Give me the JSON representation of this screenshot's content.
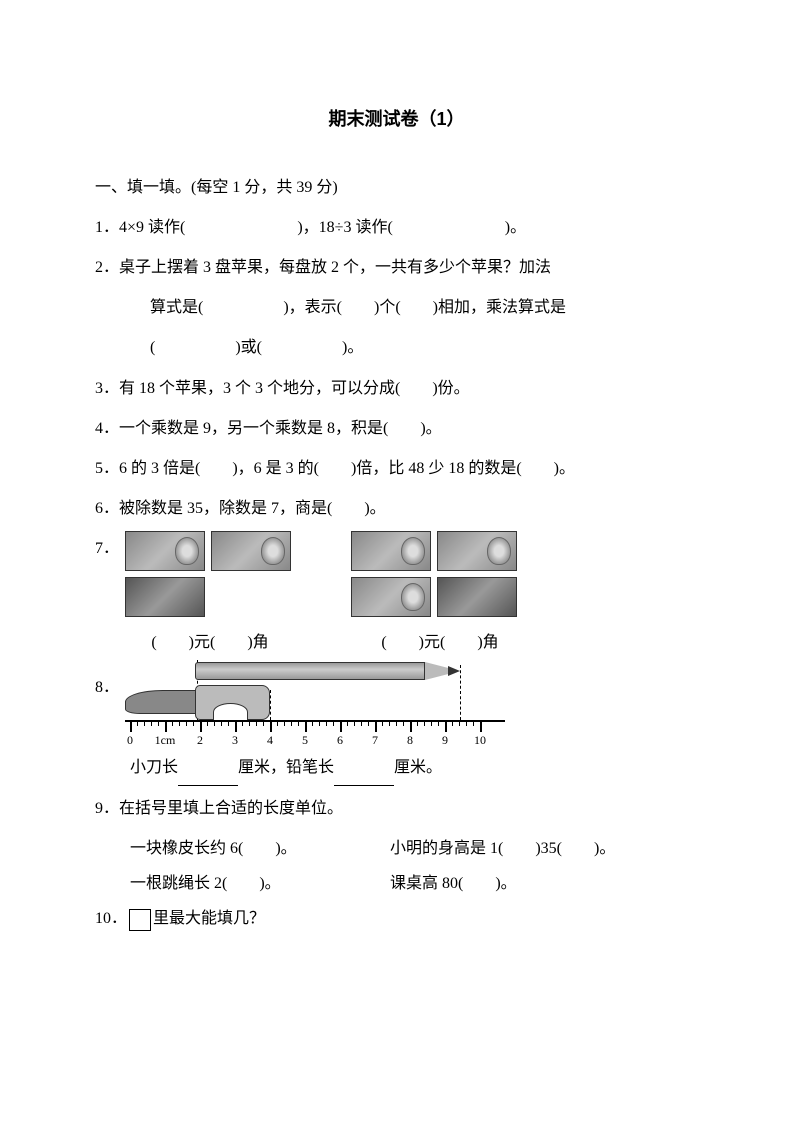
{
  "title": "期末测试卷（1）",
  "section1": {
    "header": "一、填一填。(每空 1 分，共 39 分)"
  },
  "q1": {
    "text": "1．4×9 读作(　　　　　　　)，18÷3 读作(　　　　　　　)。"
  },
  "q2": {
    "line1": "2．桌子上摆着 3 盘苹果，每盘放 2 个，一共有多少个苹果？加法",
    "line2": "算式是(　　　　　)，表示(　　)个(　　)相加，乘法算式是",
    "line3": "(　　　　　)或(　　　　　)。"
  },
  "q3": {
    "text": "3．有 18 个苹果，3 个 3 个地分，可以分成(　　)份。"
  },
  "q4": {
    "text": "4．一个乘数是 9，另一个乘数是 8，积是(　　)。"
  },
  "q5": {
    "text": "5．6 的 3 倍是(　　)，6 是 3 的(　　)倍，比 48 少 18 的数是(　　)。"
  },
  "q6": {
    "text": "6．被除数是 35，除数是 7，商是(　　)。"
  },
  "q7": {
    "num": "7．",
    "label_left": "(　　)元(　　)角",
    "label_right": "(　　)元(　　)角"
  },
  "q8": {
    "num": "8．",
    "ruler_labels": [
      "0",
      "1cm",
      "2",
      "3",
      "4",
      "5",
      "6",
      "7",
      "8",
      "9",
      "10"
    ],
    "text_prefix": "小刀长",
    "text_mid": "厘米，铅笔长",
    "text_suffix": "厘米。"
  },
  "q9": {
    "line1": "9．在括号里填上合适的长度单位。",
    "item1": "一块橡皮长约 6(　　)。",
    "item2": "小明的身高是 1(　　)35(　　)。",
    "item3": "一根跳绳长 2(　　)。",
    "item4": "课桌高 80(　　)。"
  },
  "q10": {
    "prefix": "10．",
    "suffix": "里最大能填几？"
  }
}
